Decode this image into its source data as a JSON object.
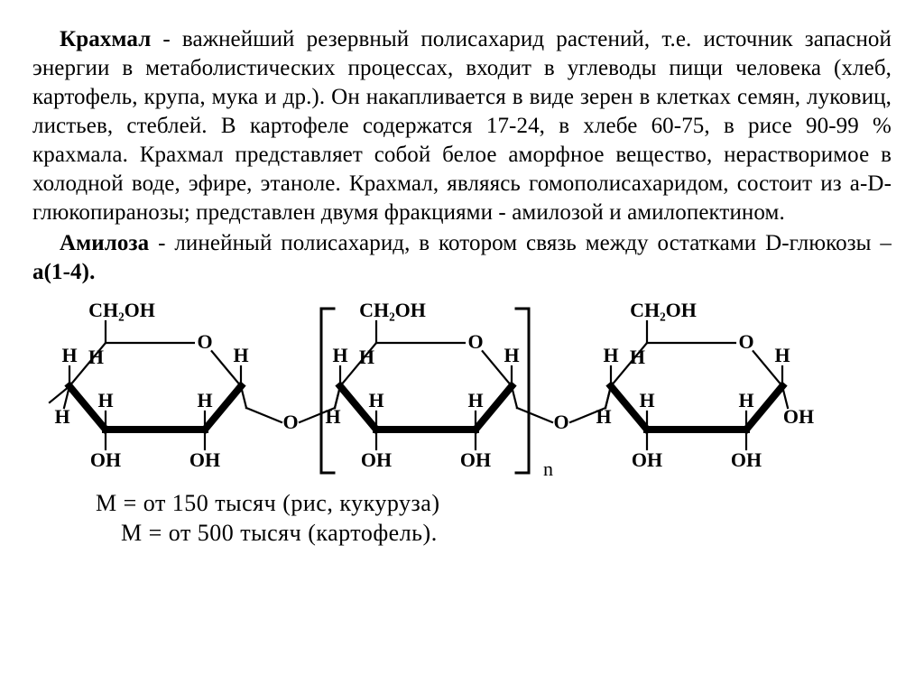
{
  "text": {
    "p1_bold": "Крахмал",
    "p1_rest": " - важнейший резервный полисахарид растений, т.е. источник запасной энергии в метаболистических процессах, входит в углеводы пищи человека (хлеб, картофель, крупа, мука и др.). Он накапливается в виде зерен в клетках семян, луковиц, листьев, стеблей. В картофеле содержатся 17-24, в хлебе 60-75, в рисе 90-99 % крахмала. Крахмал представляет собой белое аморфное вещество, нерастворимое в холодной воде, эфире, этаноле. Крахмал, являясь гомополисахаридом, состоит из a-D-глюкопиранозы; представлен двумя фракциями - амилозой и амилопектином.",
    "p2_bold": "Амилоза",
    "p2_mid": " - линейный полисахарид, в котором связь между остатками D-глюкозы –",
    "p2_bold2": "a(1-4).",
    "mass1": "М = от 150 тысяч (рис, кукуруза)",
    "mass2": "М = от 500 тысяч (картофель)."
  },
  "chem": {
    "labels": {
      "CH2OH": "CH₂OH",
      "H": "H",
      "OH": "OH",
      "O": "O",
      "n": "n"
    },
    "stroke": "#000000",
    "stroke_width": 2.2,
    "thick_width": 8,
    "font_family": "Times New Roman, serif",
    "font_size_atom": 22,
    "font_size_sub": 14
  }
}
